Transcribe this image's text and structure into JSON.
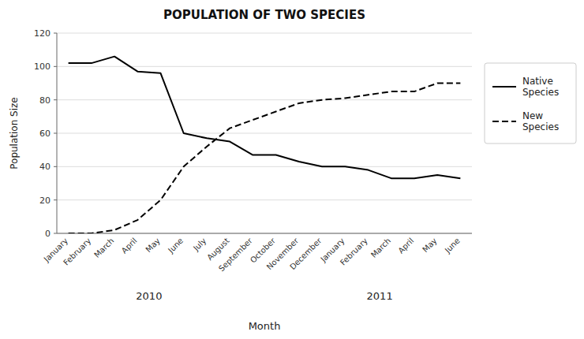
{
  "chart_data": {
    "type": "line",
    "title": "POPULATION OF TWO SPECIES",
    "x_label": "Month",
    "y_label": "Population Size",
    "categories": [
      "January",
      "February",
      "March",
      "April",
      "May",
      "June",
      "July",
      "August",
      "September",
      "October",
      "November",
      "December",
      "January",
      "February",
      "March",
      "April",
      "May",
      "June"
    ],
    "series": [
      {
        "name": "Native\nSpecies",
        "color": "#000000",
        "line_style": "solid",
        "values": [
          102,
          102,
          106,
          97,
          96,
          60,
          57,
          55,
          47,
          47,
          43,
          40,
          40,
          38,
          33,
          33,
          35,
          33
        ]
      },
      {
        "name": "New\nSpecies",
        "color": "#000000",
        "line_style": "dashed",
        "values": [
          0,
          0,
          2,
          8,
          20,
          40,
          52,
          63,
          68,
          73,
          78,
          80,
          81,
          83,
          85,
          85,
          90,
          90
        ]
      }
    ],
    "annotations": [
      {
        "text": "2010",
        "x": 3.5
      },
      {
        "text": "2011",
        "x": 13.5
      }
    ],
    "ylim": [
      0,
      120
    ],
    "yticks": [
      0,
      20,
      40,
      60,
      80,
      100,
      120
    ],
    "grid": true,
    "legend": "right"
  }
}
